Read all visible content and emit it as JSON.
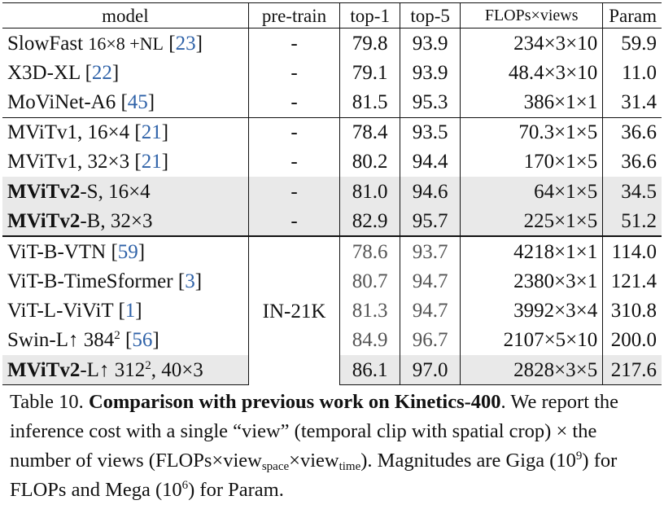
{
  "table": {
    "headers": {
      "model": "model",
      "pretrain": "pre-train",
      "top1": "top-1",
      "top5": "top-5",
      "flops_views": "FLOPs×views",
      "param": "Param"
    },
    "rows": [
      {
        "name": "SlowFast",
        "detail": "16×8 +NL",
        "cite": "23",
        "pretrain": "-",
        "top1": "79.8",
        "top5": "93.9",
        "flops": "234×3×10",
        "param": "59.9"
      },
      {
        "name": "X3D-XL",
        "cite": "22",
        "pretrain": "-",
        "top1": "79.1",
        "top5": "93.9",
        "flops": "48.4×3×10",
        "param": "11.0"
      },
      {
        "name": "MoViNet-A6",
        "cite": "45",
        "pretrain": "-",
        "top1": "81.5",
        "top5": "95.3",
        "flops": "386×1×1",
        "param": "31.4"
      },
      {
        "name": "MViTv1, 16×4",
        "cite": "21",
        "pretrain": "-",
        "top1": "78.4",
        "top5": "93.5",
        "flops": "70.3×1×5",
        "param": "36.6"
      },
      {
        "name": "MViTv1, 32×3",
        "cite": "21",
        "pretrain": "-",
        "top1": "80.2",
        "top5": "94.4",
        "flops": "170×1×5",
        "param": "36.6"
      },
      {
        "name_bold": "MViTv2",
        "name_rest": "-S, 16×4",
        "pretrain": "-",
        "top1": "81.0",
        "top5": "94.6",
        "flops": "64×1×5",
        "param": "34.5"
      },
      {
        "name_bold": "MViTv2",
        "name_rest": "-B, 32×3",
        "pretrain": "-",
        "top1": "82.9",
        "top5": "95.7",
        "flops": "225×1×5",
        "param": "51.2"
      },
      {
        "name": "ViT-B-VTN",
        "cite": "59",
        "top1": "78.6",
        "top5": "93.7",
        "flops": "4218×1×1",
        "param": "114.0"
      },
      {
        "name": "ViT-B-TimeSformer",
        "cite": "3",
        "top1": "80.7",
        "top5": "94.7",
        "flops": "2380×3×1",
        "param": "121.4"
      },
      {
        "name": "ViT-L-ViViT",
        "cite": "1",
        "top1": "81.3",
        "top5": "94.7",
        "flops": "3992×3×4",
        "param": "310.8"
      },
      {
        "name": "Swin-L↑ 384",
        "sup": "2",
        "cite": "56",
        "top1": "84.9",
        "top5": "96.7",
        "flops": "2107×5×10",
        "param": "200.0"
      },
      {
        "name_bold": "MViTv2",
        "name_rest": "-L↑ 312",
        "sup": "2",
        "name_tail": ", 40×3",
        "top1": "86.1",
        "top5": "97.0",
        "flops": "2828×3×5",
        "param": "217.6"
      }
    ],
    "pretrain_merged": "IN-21K"
  },
  "caption": {
    "label": "Table 10.",
    "title": "Comparison with previous work on Kinetics-400",
    "t1": ". We report the inference cost with a single “view” (temporal clip with spatial crop) × the number of views (FLOPs×view",
    "sub_space": "space",
    "t2": "×view",
    "sub_time": "time",
    "t3": "). Magnitudes are Giga (10",
    "sup9": "9",
    "t4": ") for FLOPs and Mega (10",
    "sup6": "6",
    "t5": ") for Param."
  }
}
